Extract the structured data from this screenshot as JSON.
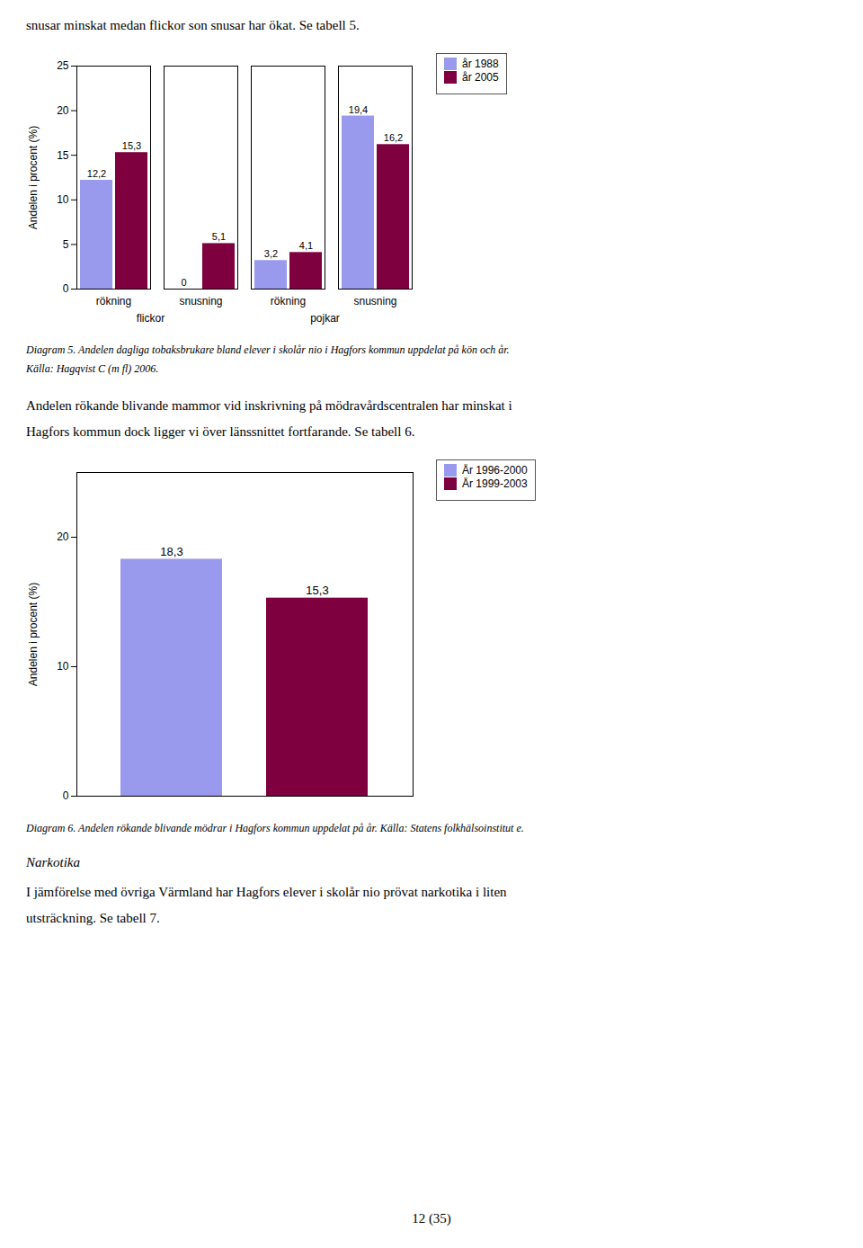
{
  "annotations": [
    "snusar minskat medan flickor son snusar har ökat. Se tabell 5.",
    "Andelen rökande blivande mammor vid inskrivning på mödravårdscentralen har minskat i",
    "Hagfors kommun dock ligger vi över länssnittet fortfarande. Se tabell 6.",
    "Narkotika",
    "I jämförelse med övriga Värmland har Hagfors elever i skolår nio prövat narkotika i liten",
    "utsträckning. Se tabell 7.",
    "12 (35)"
  ],
  "chart_data": [
    {
      "type": "bar",
      "title": "Diagram 5. Andelen dagliga tobaksbrukare bland elever i skolår nio i Hagfors kommun uppdelat på kön och år.",
      "subtitle": "Källa: Hagqvist C (m fl) 2006.",
      "categories": [
        "rökning",
        "snusning",
        "rökning",
        "snusning"
      ],
      "annotations": [
        "flickor",
        "pojkar"
      ],
      "series": [
        {
          "name": "år 1988",
          "color": "#9999ee",
          "values": [
            12.2,
            0.0,
            3.2,
            19.4
          ],
          "value_labels": [
            "12,2",
            "0",
            "3,2",
            "19,4"
          ]
        },
        {
          "name": "år 2005",
          "color": "#7f003f",
          "values": [
            15.3,
            5.1,
            4.1,
            16.2
          ],
          "value_labels": [
            "15,3",
            "5,1",
            "4,1",
            "16,2"
          ]
        }
      ],
      "ylabel": "Andelen i procent (%)",
      "ylim": [
        0,
        25
      ],
      "yticks": [
        0,
        5,
        10,
        15,
        20,
        25
      ],
      "data_labels": true,
      "legend": "right",
      "grid": false
    },
    {
      "type": "bar",
      "title": "Diagram 6. Andelen rökande blivande mödrar i Hagfors kommun uppdelat på år. Källa: Statens folkhälsoinstitut e.",
      "categories": [
        "År 1996-2000",
        "År 1999-2003"
      ],
      "values": [
        18.3,
        15.3
      ],
      "value_labels": [
        "18,3",
        "15,3"
      ],
      "colors": [
        "#9999ee",
        "#7f003f"
      ],
      "ylabel": "Andelen i procent (%)",
      "ylim": [
        0,
        25
      ],
      "yticks": [
        0,
        10,
        20
      ],
      "data_labels": true,
      "legend": "right",
      "tick_labels": "y",
      "grid": false
    }
  ]
}
